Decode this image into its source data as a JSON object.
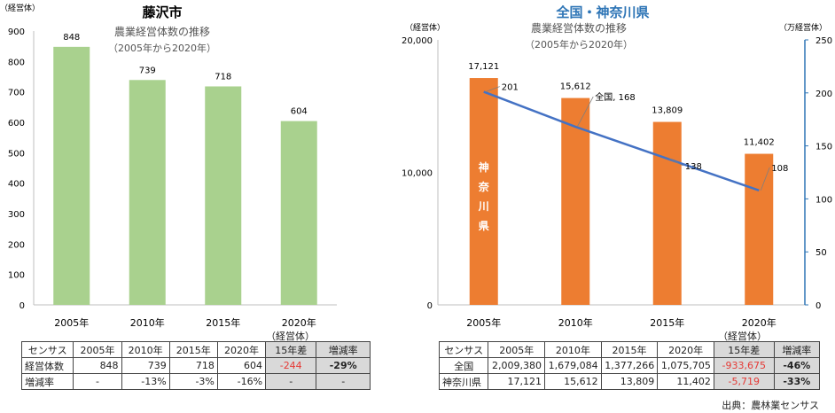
{
  "chart_data": [
    {
      "type": "bar",
      "title": "藤沢市",
      "subtitle": "農業経営体数の推移",
      "subtitle2": "（2005年から2020年）",
      "ylabel": "（経営体）",
      "ylim": [
        0,
        900
      ],
      "yticks": [
        0,
        100,
        200,
        300,
        400,
        500,
        600,
        700,
        800,
        900
      ],
      "categories": [
        "2005年",
        "2010年",
        "2015年",
        "2020年"
      ],
      "values": [
        848,
        739,
        718,
        604
      ],
      "value_labels": [
        "848",
        "739",
        "718",
        "604"
      ],
      "bar_color": "#a9d18e"
    },
    {
      "type": "bar",
      "title": "全国・神奈川県",
      "subtitle": "農業経営体数の推移",
      "subtitle2": "（2005年から2020年）",
      "ylabel": "（経営体）",
      "ylabel_right": "（万経営体）",
      "ylim": [
        0,
        20000
      ],
      "yticks": [
        0,
        10000,
        20000
      ],
      "ytick_labels": [
        "0",
        "10,000",
        "20,000"
      ],
      "y2lim": [
        0,
        250
      ],
      "y2ticks": [
        0,
        50,
        100,
        150,
        200,
        250
      ],
      "categories": [
        "2005年",
        "2010年",
        "2015年",
        "2020年"
      ],
      "series": [
        {
          "name": "神奈川県",
          "values": [
            17121,
            15612,
            13809,
            11402
          ],
          "value_labels": [
            "17,121",
            "15,612",
            "13,809",
            "11,402"
          ],
          "color": "#ed7d31"
        },
        {
          "name": "全国",
          "axis": "right",
          "values": [
            201,
            168,
            138,
            108
          ],
          "value_labels": [
            "201",
            "全国, 168",
            "138",
            "108"
          ],
          "color": "#4472c4"
        }
      ],
      "bar_inner_label": [
        "神",
        "奈",
        "川",
        "県"
      ]
    }
  ],
  "table_left": {
    "header": [
      "センサス",
      "2005年",
      "2010年",
      "2015年",
      "2020年",
      "15年差",
      "増減率"
    ],
    "header_unit": "（経営体）",
    "rows": [
      [
        "経営体数",
        "848",
        "739",
        "718",
        "604",
        "-244",
        "-29%"
      ],
      [
        "増減率",
        "-",
        "-13%",
        "-3%",
        "-16%",
        "-",
        "-"
      ]
    ]
  },
  "table_right": {
    "header": [
      "センサス",
      "2005年",
      "2010年",
      "2015年",
      "2020年",
      "15年差",
      "増減率"
    ],
    "header_unit": "（経営体）",
    "rows": [
      [
        "全国",
        "2,009,380",
        "1,679,084",
        "1,377,266",
        "1,075,705",
        "-933,675",
        "-46%"
      ],
      [
        "神奈川県",
        "17,121",
        "15,612",
        "13,809",
        "11,402",
        "-5,719",
        "-33%"
      ]
    ]
  },
  "source": "出典：農林業センサス"
}
